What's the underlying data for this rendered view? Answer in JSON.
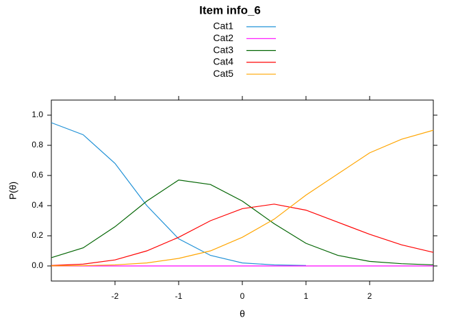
{
  "chart_data": {
    "type": "line",
    "title": "Item info_6",
    "xlabel": "θ",
    "ylabel": "P(θ)",
    "x": [
      -3,
      -2.5,
      -2,
      -1.5,
      -1,
      -0.5,
      0,
      0.5,
      1,
      1.5,
      2,
      2.5,
      3
    ],
    "series": [
      {
        "name": "Cat1",
        "color": "#1e90d6",
        "values": [
          0.95,
          0.87,
          0.68,
          0.4,
          0.18,
          0.07,
          0.02,
          0.007,
          0.003,
          null,
          null,
          null,
          null
        ]
      },
      {
        "name": "Cat2",
        "color": "#ff00ff",
        "values": [
          0,
          0,
          0,
          0,
          0,
          0,
          0,
          0,
          0,
          0,
          0,
          0,
          0
        ]
      },
      {
        "name": "Cat3",
        "color": "#006400",
        "values": [
          0.055,
          0.12,
          0.26,
          0.43,
          0.57,
          0.54,
          0.43,
          0.28,
          0.15,
          0.07,
          0.03,
          0.015,
          0.007
        ]
      },
      {
        "name": "Cat4",
        "color": "#ff0000",
        "values": [
          0.003,
          0.012,
          0.04,
          0.1,
          0.19,
          0.3,
          0.38,
          0.41,
          0.37,
          0.29,
          0.21,
          0.14,
          0.09
        ]
      },
      {
        "name": "Cat5",
        "color": "#ffa500",
        "values": [
          0.0005,
          0.002,
          0.007,
          0.02,
          0.05,
          0.1,
          0.19,
          0.31,
          0.47,
          0.61,
          0.75,
          0.84,
          0.9
        ]
      }
    ],
    "xlim": [
      -3,
      3
    ],
    "xticks": [
      -2,
      -1,
      0,
      1,
      2
    ],
    "ylim": [
      -0.1,
      1.1
    ],
    "yticks": [
      {
        "value": 0,
        "label": "0.0"
      },
      {
        "value": 0.2,
        "label": "0.2"
      },
      {
        "value": 0.4,
        "label": "0.4"
      },
      {
        "value": 0.6,
        "label": "0.6"
      },
      {
        "value": 0.8,
        "label": "0.8"
      },
      {
        "value": 1,
        "label": "1.0"
      }
    ]
  }
}
